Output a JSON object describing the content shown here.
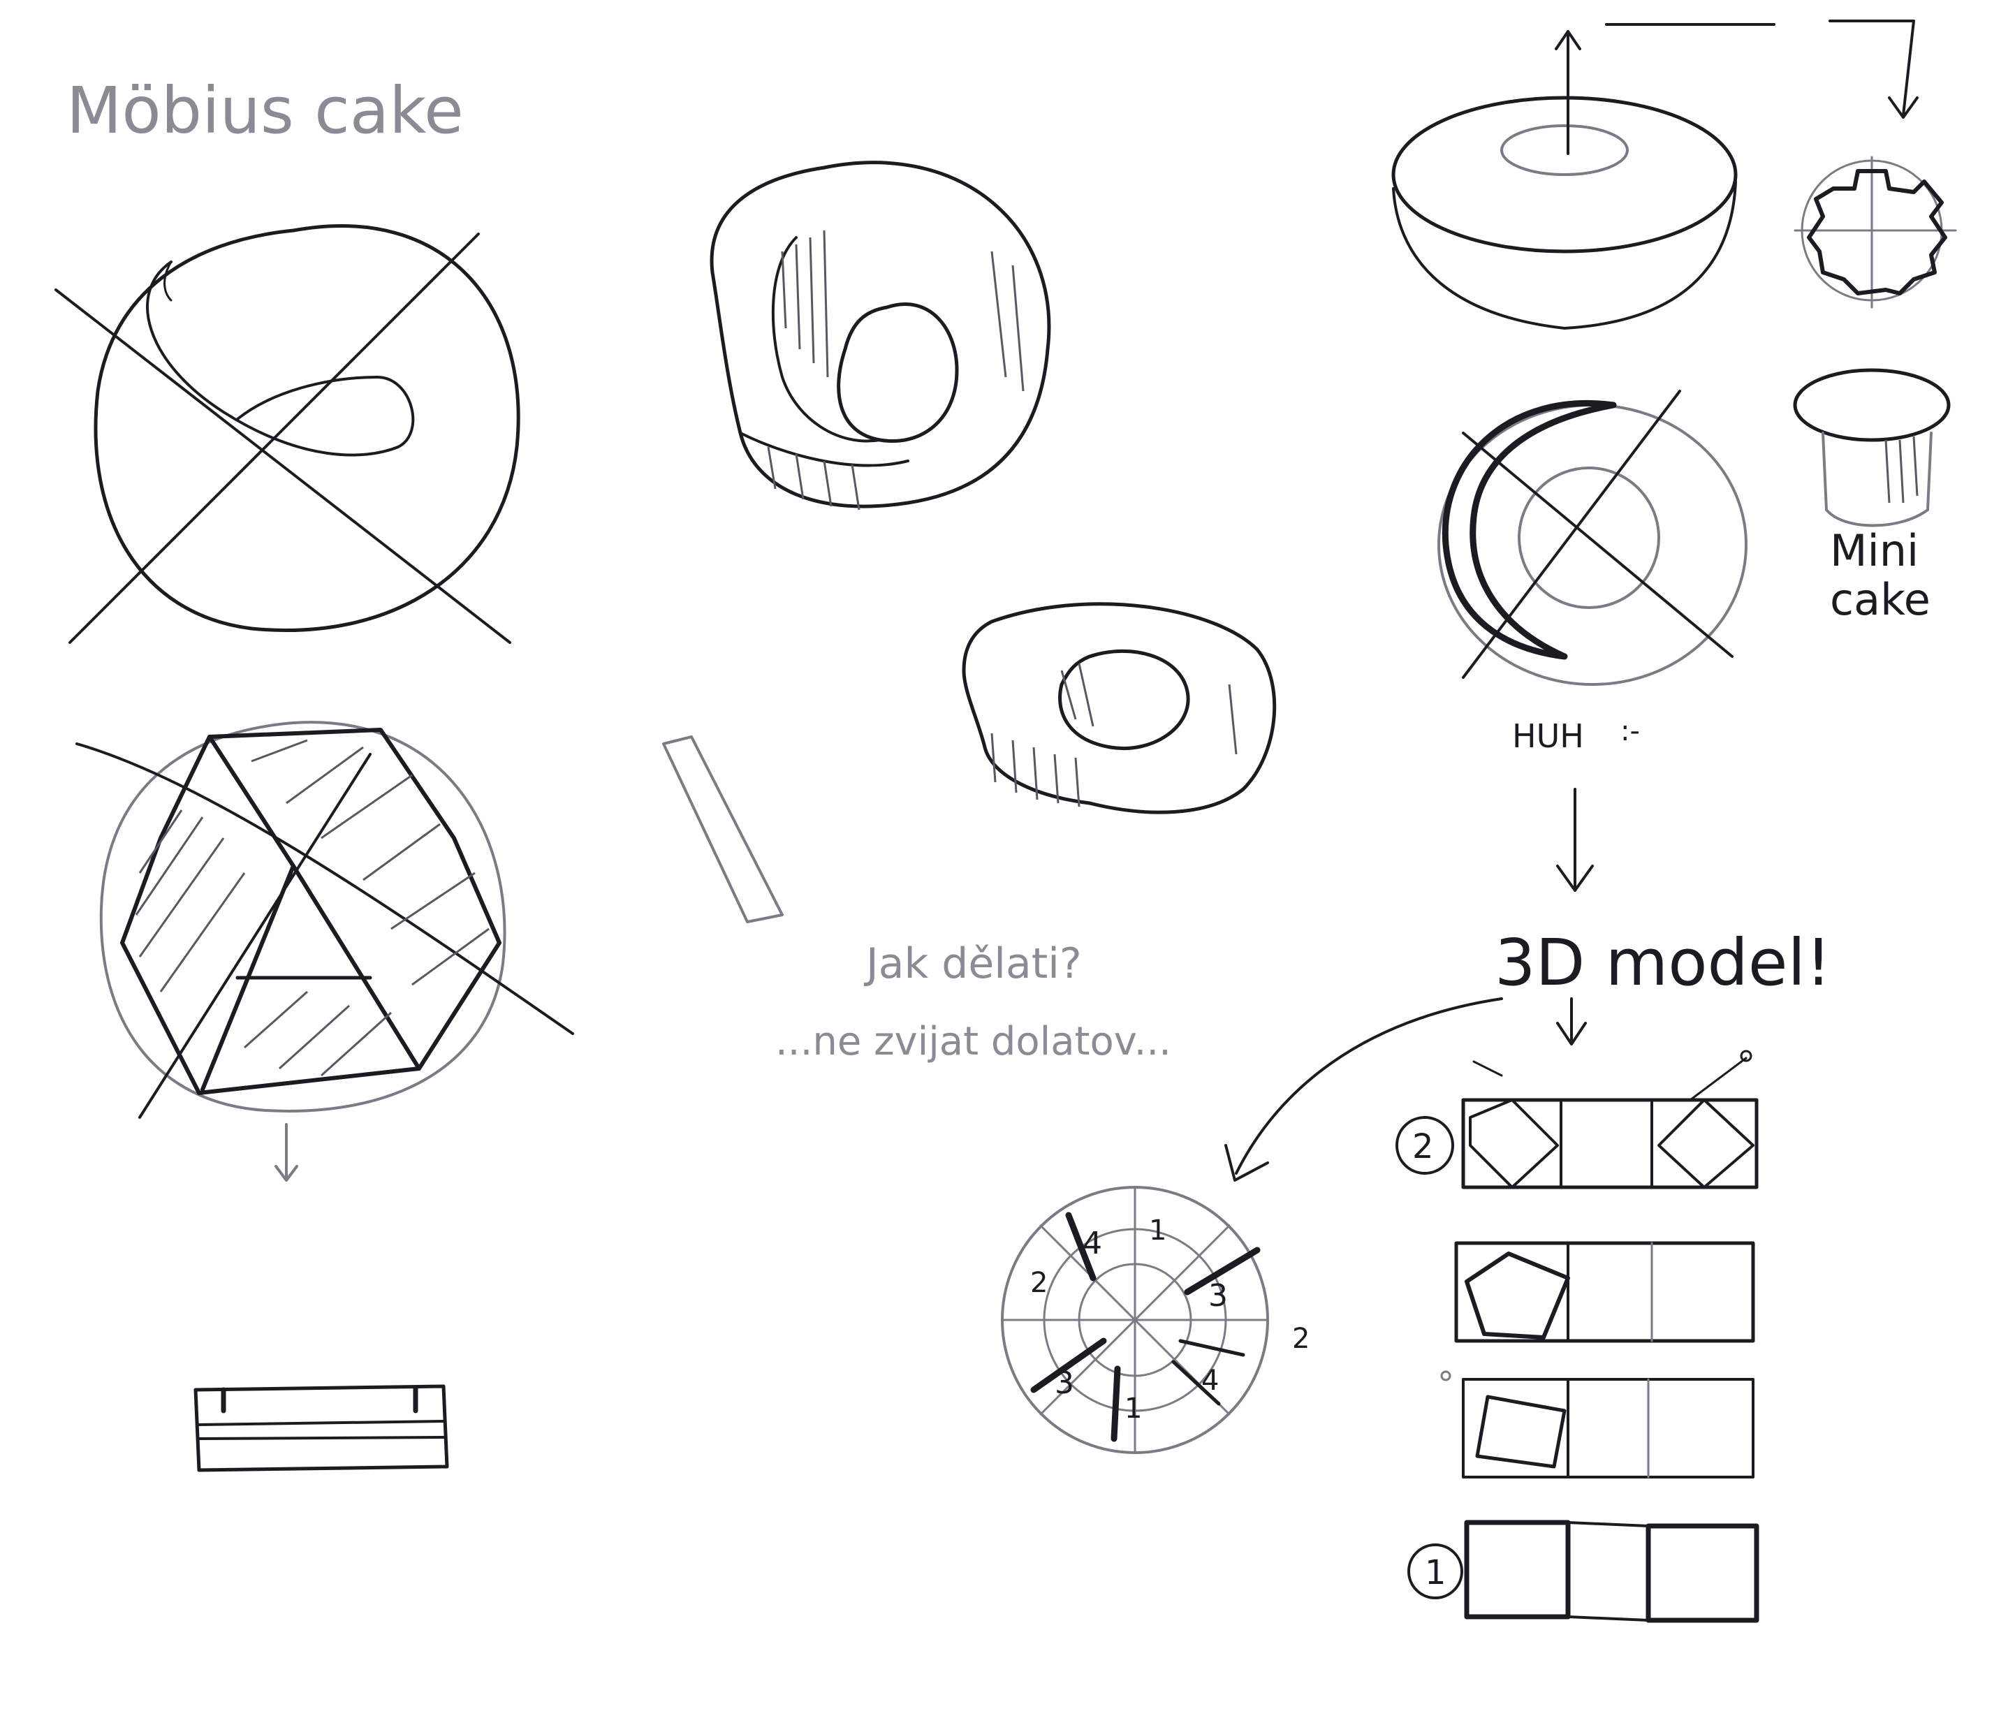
{
  "sketches": {
    "title": "Möbius cake",
    "question_line1": "Jak dělati?",
    "question_line2": "...ne zvijat dolatov...",
    "huh": "HUH",
    "huh_emoticon": ":-",
    "model_label": "3D model!",
    "mini_cake": [
      "Mini",
      "cake"
    ],
    "segment_numbers": [
      "1",
      "2",
      "3",
      "4",
      "2",
      "3",
      "1",
      "4",
      "2"
    ],
    "step_labels": [
      "2",
      "1"
    ]
  },
  "colors": {
    "ink": "#1c1b22",
    "pencil": "#7d7a86",
    "paper": "#ffffff"
  }
}
